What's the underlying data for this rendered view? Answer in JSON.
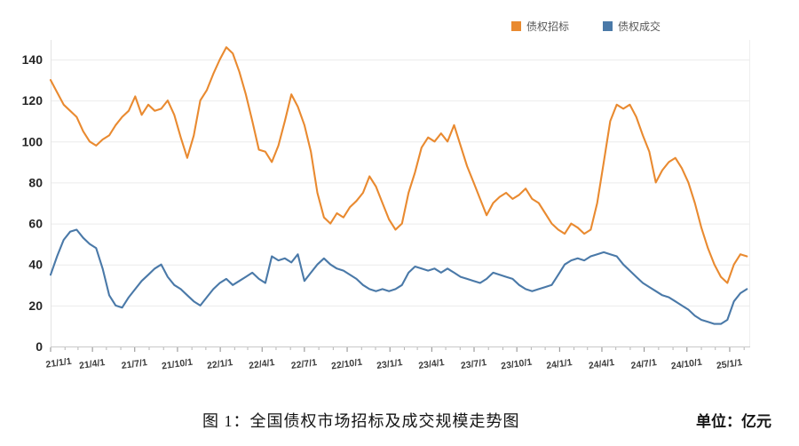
{
  "page": {
    "background": "#ffffff"
  },
  "legend": {
    "items": [
      {
        "label": "债权招标",
        "color": "#E98A30"
      },
      {
        "label": "债权成交",
        "color": "#4A79A8"
      }
    ]
  },
  "caption": {
    "title": "图 1：全国债权市场招标及成交规模走势图",
    "unit_label": "单位：亿元"
  },
  "chart_data": {
    "type": "line",
    "title": "图 1：全国债权市场招标及成交规模走势图",
    "unit": "亿元",
    "x_start_date": "2021-01-01",
    "interval_days": 14,
    "ylim": [
      0,
      150
    ],
    "y_ticks": [
      0,
      20,
      40,
      60,
      80,
      100,
      120,
      140
    ],
    "grid": true,
    "legend_position": "top",
    "x_ticks": [
      {
        "label": "21/1/1",
        "day": 0
      },
      {
        "label": "21/4/1",
        "day": 90
      },
      {
        "label": "21/7/1",
        "day": 181
      },
      {
        "label": "21/10/1",
        "day": 273
      },
      {
        "label": "22/1/1",
        "day": 365
      },
      {
        "label": "22/4/1",
        "day": 455
      },
      {
        "label": "22/7/1",
        "day": 546
      },
      {
        "label": "22/10/1",
        "day": 638
      },
      {
        "label": "23/1/1",
        "day": 730
      },
      {
        "label": "23/4/1",
        "day": 820
      },
      {
        "label": "23/7/1",
        "day": 911
      },
      {
        "label": "23/10/1",
        "day": 1003
      },
      {
        "label": "24/1/1",
        "day": 1095
      },
      {
        "label": "24/4/1",
        "day": 1186
      },
      {
        "label": "24/7/1",
        "day": 1277
      },
      {
        "label": "24/10/1",
        "day": 1369
      },
      {
        "label": "25/1/1",
        "day": 1461
      }
    ],
    "series": [
      {
        "name": "债权招标",
        "color": "#E98A30",
        "values": [
          130,
          124,
          118,
          115,
          112,
          105,
          100,
          98,
          101,
          103,
          108,
          112,
          115,
          122,
          113,
          118,
          115,
          116,
          120,
          113,
          102,
          92,
          103,
          120,
          125,
          133,
          140,
          146,
          143,
          134,
          123,
          110,
          96,
          95,
          90,
          98,
          110,
          123,
          117,
          108,
          95,
          75,
          63,
          60,
          65,
          63,
          68,
          71,
          75,
          83,
          78,
          70,
          62,
          57,
          60,
          75,
          85,
          97,
          102,
          100,
          104,
          100,
          108,
          98,
          88,
          80,
          72,
          64,
          70,
          73,
          75,
          72,
          74,
          77,
          72,
          70,
          65,
          60,
          57,
          55,
          60,
          58,
          55,
          57,
          70,
          90,
          110,
          118,
          116,
          118,
          112,
          103,
          95,
          80,
          86,
          90,
          92,
          87,
          80,
          70,
          58,
          48,
          40,
          34,
          31,
          40,
          45,
          44
        ]
      },
      {
        "name": "债权成交",
        "color": "#4A79A8",
        "values": [
          35,
          44,
          52,
          56,
          57,
          53,
          50,
          48,
          38,
          25,
          20,
          19,
          24,
          28,
          32,
          35,
          38,
          40,
          34,
          30,
          28,
          25,
          22,
          20,
          24,
          28,
          31,
          33,
          30,
          32,
          34,
          36,
          33,
          31,
          44,
          42,
          43,
          41,
          45,
          32,
          36,
          40,
          43,
          40,
          38,
          37,
          35,
          33,
          30,
          28,
          27,
          28,
          27,
          28,
          30,
          36,
          39,
          38,
          37,
          38,
          36,
          38,
          36,
          34,
          33,
          32,
          31,
          33,
          36,
          35,
          34,
          33,
          30,
          28,
          27,
          28,
          29,
          30,
          35,
          40,
          42,
          43,
          42,
          44,
          45,
          46,
          45,
          44,
          40,
          37,
          34,
          31,
          29,
          27,
          25,
          24,
          22,
          20,
          18,
          15,
          13,
          12,
          11,
          11,
          13,
          22,
          26,
          28
        ]
      }
    ]
  }
}
